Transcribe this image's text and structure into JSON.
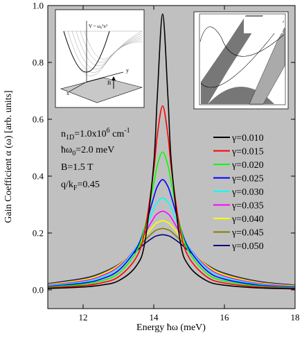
{
  "chart_data": {
    "type": "line",
    "x_label": "Energy ħω (meV)",
    "y_label": "Gain Coefficient α (ω) [arb. units]",
    "xlim": [
      11,
      18
    ],
    "ylim": [
      -0.066,
      1.0
    ],
    "xticks": [
      12,
      14,
      16,
      18
    ],
    "yticks": [
      {
        "value": 0,
        "label": "0.0"
      },
      0.2,
      0.4,
      0.6,
      0.8,
      {
        "value": 1,
        "label": "1.0"
      }
    ],
    "background": "#c0c0c0",
    "legend": "right",
    "annotations": [
      [
        {
          "text": "n"
        },
        {
          "text": "1D",
          "shift": "sub"
        },
        {
          "text": "=1.0x10"
        },
        {
          "text": "6",
          "shift": "sup"
        },
        {
          "text": " cm"
        },
        {
          "text": "-1",
          "shift": "sup"
        }
      ],
      [
        {
          "text": "ħω"
        },
        {
          "text": "0",
          "shift": "sub"
        },
        {
          "text": "=2.0 meV"
        }
      ],
      [
        {
          "text": "B=1.5 T"
        }
      ],
      [
        {
          "text": "q/k"
        },
        {
          "text": "F",
          "shift": "sub"
        },
        {
          "text": "=0.45"
        }
      ]
    ],
    "inset_labels": [
      "V ~ ω₀²x²",
      "y",
      "B",
      "x"
    ],
    "x": [
      11,
      12,
      12.5,
      13,
      13.5,
      13.75,
      14,
      14.1,
      14.25,
      14.4,
      14.5,
      14.75,
      15,
      15.5,
      16,
      17,
      18
    ],
    "series": [
      {
        "name": "γ=0.010",
        "color": "#000000",
        "values": [
          0.0048,
          0.01,
          0.0165,
          0.0318,
          0.0834,
          0.1694,
          0.4446,
          0.6805,
          0.97,
          0.6805,
          0.4446,
          0.1694,
          0.0834,
          0.0318,
          0.0165,
          0.0067,
          0.0036
        ]
      },
      {
        "name": "γ=0.015",
        "color": "#ff0000",
        "values": [
          0.0072,
          0.0149,
          0.0242,
          0.0458,
          0.113,
          0.209,
          0.424,
          0.544,
          0.647,
          0.544,
          0.424,
          0.209,
          0.113,
          0.0458,
          0.0242,
          0.01,
          0.0054
        ]
      },
      {
        "name": "γ=0.020",
        "color": "#00ff00",
        "values": [
          0.0095,
          0.0195,
          0.0313,
          0.0578,
          0.1326,
          0.2223,
          0.3743,
          0.4383,
          0.485,
          0.4383,
          0.3743,
          0.2223,
          0.1326,
          0.0578,
          0.0313,
          0.0132,
          0.0072
        ]
      },
      {
        "name": "γ=0.025",
        "color": "#0000ff",
        "values": [
          0.0118,
          0.0238,
          0.0378,
          0.0678,
          0.1437,
          0.221,
          0.3264,
          0.3634,
          0.388,
          0.3634,
          0.3264,
          0.221,
          0.1437,
          0.0678,
          0.0378,
          0.0163,
          0.0089
        ]
      },
      {
        "name": "γ=0.030",
        "color": "#00ffff",
        "values": [
          0.0139,
          0.0278,
          0.0435,
          0.0754,
          0.148,
          0.2118,
          0.2856,
          0.3085,
          0.323,
          0.3085,
          0.2856,
          0.2118,
          0.148,
          0.0754,
          0.0435,
          0.0191,
          0.0106
        ]
      },
      {
        "name": "γ=0.035",
        "color": "#ff00ff",
        "values": [
          0.016,
          0.0314,
          0.0484,
          0.0812,
          0.1483,
          0.1999,
          0.2526,
          0.2677,
          0.277,
          0.2677,
          0.2526,
          0.1999,
          0.1483,
          0.0812,
          0.0484,
          0.0219,
          0.0122
        ]
      },
      {
        "name": "γ=0.040",
        "color": "#ffff00",
        "values": [
          0.018,
          0.0348,
          0.0526,
          0.0854,
          0.146,
          0.1877,
          0.2263,
          0.2367,
          0.243,
          0.2367,
          0.2263,
          0.1877,
          0.146,
          0.0854,
          0.0526,
          0.0245,
          0.0138
        ]
      },
      {
        "name": "γ=0.045",
        "color": "#808000",
        "values": [
          0.0199,
          0.0377,
          0.056,
          0.0879,
          0.1416,
          0.1752,
          0.2041,
          0.2115,
          0.216,
          0.2115,
          0.2041,
          0.1752,
          0.1416,
          0.0879,
          0.056,
          0.0268,
          0.0153
        ]
      },
      {
        "name": "γ=0.050",
        "color": "#000080",
        "values": [
          0.0216,
          0.0402,
          0.0585,
          0.0889,
          0.1361,
          0.1632,
          0.1853,
          0.1908,
          0.194,
          0.1908,
          0.1853,
          0.1632,
          0.1361,
          0.0889,
          0.0585,
          0.0289,
          0.0167
        ]
      }
    ]
  }
}
